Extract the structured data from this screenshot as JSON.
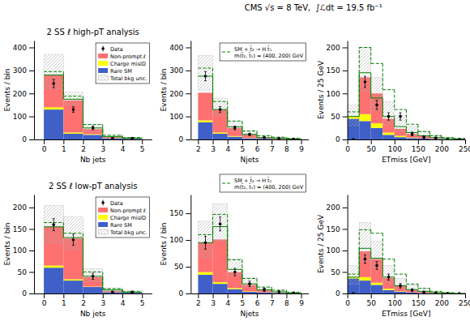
{
  "chart_data": [
    {
      "type": "histogram",
      "title": "2 SS ℓ high-pT analysis",
      "x_label": "Nb jets",
      "y_label": "Events / bin",
      "xlim": [
        -0.5,
        5.5
      ],
      "ylim": [
        0,
        430
      ],
      "xticks": [
        0,
        1,
        2,
        3,
        4,
        5
      ],
      "yticks": [
        0,
        100,
        200,
        300,
        400
      ],
      "bins": [
        0,
        1,
        2,
        3,
        4,
        5
      ],
      "stacked": true,
      "legend": "upper right",
      "series": [
        {
          "name": "Rare SM",
          "type": "bar",
          "color": "#4060c8",
          "values": [
            130,
            25,
            20,
            5,
            3
          ]
        },
        {
          "name": "Charge misID",
          "type": "bar",
          "color": "#ffff00",
          "values": [
            10,
            5,
            3,
            1,
            0
          ]
        },
        {
          "name": "Non-prompt ℓ",
          "type": "bar",
          "color": "#ff7070",
          "values": [
            140,
            140,
            22,
            5,
            0
          ]
        },
        {
          "name": "Total bkg unc.",
          "type": "band",
          "color": "#aaaaaa",
          "low": [
            220,
            150,
            32,
            7,
            2
          ],
          "high": [
            370,
            205,
            65,
            20,
            10
          ]
        },
        {
          "type": "step",
          "color": "green",
          "line_style": "solid",
          "values": [
            280,
            175,
            50,
            12,
            5
          ]
        },
        {
          "type": "step",
          "color": "green",
          "line_style": "dashed",
          "values": [
            295,
            188,
            65,
            18,
            8
          ]
        },
        {
          "name": "Data",
          "type": "scatter",
          "color": "#000000",
          "marker": "circle",
          "x": [
            0.5,
            1.5,
            2.5,
            3.5,
            4.5
          ],
          "values": [
            243,
            130,
            50,
            5,
            5
          ],
          "error_low": [
            18,
            12,
            8,
            3,
            3
          ],
          "error_high": [
            18,
            12,
            8,
            3,
            3
          ]
        }
      ]
    },
    {
      "type": "histogram",
      "x_label": "Njets",
      "y_label": "Events / bin",
      "annotations": [
        "CMS √s = 8 TeV,  ∫ℒdt = 19.5 fb⁻¹"
      ],
      "xlim": [
        1.5,
        9.5
      ],
      "ylim": [
        0,
        430
      ],
      "xticks": [
        2,
        3,
        4,
        5,
        6,
        7,
        8,
        9
      ],
      "yticks": [
        0,
        100,
        200,
        300,
        400
      ],
      "bins": [
        2,
        3,
        4,
        5,
        6,
        7,
        8,
        9
      ],
      "stacked": true,
      "legend": "upper right",
      "series": [
        {
          "type": "bar",
          "color": "#4060c8",
          "values": [
            75,
            25,
            12,
            5,
            3,
            1,
            1
          ]
        },
        {
          "type": "bar",
          "color": "#ffff00",
          "values": [
            8,
            5,
            3,
            1,
            0,
            0,
            0
          ]
        },
        {
          "type": "bar",
          "color": "#ff7070",
          "values": [
            120,
            100,
            35,
            15,
            5,
            2,
            0
          ]
        },
        {
          "type": "band",
          "color": "#aaaaaa",
          "low": [
            215,
            105,
            38,
            14,
            5,
            3,
            1
          ],
          "high": [
            365,
            180,
            78,
            35,
            15,
            10,
            5
          ]
        },
        {
          "type": "step",
          "color": "green",
          "line_style": "solid",
          "values": [
            275,
            130,
            55,
            22,
            8,
            5,
            2
          ]
        },
        {
          "name": "SM + t̃₂ → H t̃₁\nm(t̃₂, t̃₁) = (400, 200) GeV",
          "type": "step",
          "color": "green",
          "line_style": "dashed",
          "values": [
            310,
            165,
            80,
            37,
            16,
            10,
            5
          ]
        },
        {
          "type": "scatter",
          "color": "#000000",
          "marker": "circle",
          "x": [
            2.5,
            3.5,
            4.5,
            5.5,
            6.5,
            7.5,
            8.5
          ],
          "values": [
            275,
            130,
            50,
            22,
            8,
            4,
            2
          ],
          "error_low": [
            20,
            13,
            8,
            5,
            3,
            2,
            1
          ],
          "error_high": [
            20,
            13,
            8,
            5,
            3,
            2,
            1
          ]
        }
      ]
    },
    {
      "type": "histogram",
      "x_label": "ETmiss [GeV]",
      "y_label": "Events / 25 GeV",
      "xlim": [
        0,
        250
      ],
      "ylim": [
        0,
        215
      ],
      "xticks": [
        0,
        50,
        100,
        150,
        200,
        250
      ],
      "yticks": [
        0,
        50,
        100,
        150,
        200
      ],
      "bins": [
        0,
        25,
        50,
        75,
        100,
        125,
        150,
        175,
        200,
        225,
        250
      ],
      "stacked": true,
      "series": [
        {
          "type": "bar",
          "color": "#4060c8",
          "values": [
            45,
            40,
            25,
            10,
            5,
            3,
            2,
            1,
            0,
            0
          ]
        },
        {
          "type": "bar",
          "color": "#ffff00",
          "values": [
            5,
            15,
            10,
            5,
            3,
            1,
            0,
            0,
            0,
            0
          ]
        },
        {
          "type": "bar",
          "color": "#ff7070",
          "values": [
            0,
            80,
            65,
            30,
            15,
            8,
            5,
            2,
            0,
            0
          ]
        },
        {
          "type": "band",
          "color": "#aaaaaa",
          "low": [
            30,
            105,
            62,
            33,
            17,
            9,
            5,
            2,
            1,
            0
          ],
          "high": [
            75,
            200,
            135,
            82,
            52,
            28,
            18,
            10,
            5,
            2
          ]
        },
        {
          "type": "step",
          "color": "green",
          "line_style": "solid",
          "values": [
            50,
            145,
            90,
            50,
            28,
            15,
            8,
            4,
            2,
            1
          ]
        },
        {
          "type": "step",
          "color": "green",
          "line_style": "dashed",
          "values": [
            60,
            200,
            165,
            108,
            65,
            33,
            17,
            8,
            4,
            2
          ]
        },
        {
          "type": "scatter",
          "color": "#000000",
          "marker": "circle",
          "x": [
            12.5,
            37.5,
            62.5,
            87.5,
            112.5,
            137.5,
            162.5,
            187.5,
            212.5,
            237.5
          ],
          "values": [
            0,
            125,
            75,
            50,
            50,
            12,
            5,
            3,
            0,
            0
          ],
          "error_low": [
            0,
            12,
            10,
            8,
            8,
            4,
            3,
            2,
            0,
            0
          ],
          "error_high": [
            0,
            12,
            10,
            8,
            8,
            4,
            3,
            2,
            0,
            0
          ]
        }
      ]
    },
    {
      "type": "histogram",
      "title": "2 SS ℓ low-pT analysis",
      "x_label": "Nb jets",
      "y_label": "Events / bin",
      "xlim": [
        -0.5,
        5.5
      ],
      "ylim": [
        0,
        230
      ],
      "xticks": [
        0,
        1,
        2,
        3,
        4,
        5
      ],
      "yticks": [
        0,
        50,
        100,
        150,
        200
      ],
      "bins": [
        0,
        1,
        2,
        3,
        4,
        5
      ],
      "stacked": true,
      "legend": "upper right",
      "series": [
        {
          "name": "Rare SM",
          "type": "bar",
          "color": "#4060c8",
          "values": [
            60,
            30,
            15,
            3,
            2
          ]
        },
        {
          "name": "Charge misID",
          "type": "bar",
          "color": "#ffff00",
          "values": [
            5,
            3,
            1,
            0,
            0
          ]
        },
        {
          "name": "Non-prompt ℓ",
          "type": "bar",
          "color": "#ff7070",
          "values": [
            90,
            95,
            22,
            3,
            0
          ]
        },
        {
          "name": "Total bkg unc.",
          "type": "band",
          "color": "#aaaaaa",
          "low": [
            118,
            103,
            28,
            5,
            1
          ],
          "high": [
            205,
            178,
            58,
            13,
            7
          ]
        },
        {
          "type": "step",
          "color": "green",
          "line_style": "solid",
          "values": [
            155,
            130,
            40,
            8,
            3
          ]
        },
        {
          "type": "step",
          "color": "green",
          "line_style": "dashed",
          "values": [
            165,
            140,
            50,
            11,
            4
          ]
        },
        {
          "name": "Data",
          "type": "scatter",
          "color": "#000000",
          "marker": "circle",
          "x": [
            0.5,
            1.5,
            2.5,
            3.5,
            4.5
          ],
          "values": [
            160,
            125,
            40,
            3,
            3
          ],
          "error_low": [
            14,
            13,
            7,
            2,
            2
          ],
          "error_high": [
            14,
            13,
            7,
            2,
            2
          ]
        }
      ]
    },
    {
      "type": "histogram",
      "x_label": "Njets",
      "y_label": "Events / bin",
      "xlim": [
        1.5,
        9.5
      ],
      "ylim": [
        0,
        185
      ],
      "xticks": [
        2,
        3,
        4,
        5,
        6,
        7,
        8,
        9
      ],
      "yticks": [
        0,
        50,
        100,
        150
      ],
      "bins": [
        2,
        3,
        4,
        5,
        6,
        7,
        8,
        9
      ],
      "stacked": true,
      "legend": "upper right",
      "series": [
        {
          "type": "bar",
          "color": "#4060c8",
          "values": [
            35,
            18,
            8,
            3,
            2,
            1,
            0
          ]
        },
        {
          "type": "bar",
          "color": "#ffff00",
          "values": [
            5,
            3,
            2,
            1,
            0,
            0,
            0
          ]
        },
        {
          "type": "bar",
          "color": "#ff7070",
          "values": [
            55,
            80,
            30,
            12,
            4,
            1,
            0
          ]
        },
        {
          "type": "band",
          "color": "#aaaaaa",
          "low": [
            68,
            98,
            33,
            12,
            4,
            2,
            0
          ],
          "high": [
            135,
            168,
            65,
            30,
            12,
            7,
            3
          ]
        },
        {
          "type": "step",
          "color": "green",
          "line_style": "solid",
          "values": [
            95,
            125,
            45,
            18,
            7,
            3,
            1
          ]
        },
        {
          "name": "SM + t̃₂ → H t̃₁\nm(t̃₂, t̃₁) = (400, 200) GeV",
          "type": "step",
          "color": "green",
          "line_style": "dashed",
          "values": [
            110,
            148,
            63,
            28,
            12,
            6,
            2
          ]
        },
        {
          "type": "scatter",
          "color": "#000000",
          "marker": "circle",
          "x": [
            2.5,
            3.5,
            4.5,
            5.5,
            6.5,
            7.5,
            8.5
          ],
          "values": [
            95,
            130,
            40,
            18,
            7,
            3,
            1
          ],
          "error_low": [
            12,
            13,
            7,
            5,
            3,
            2,
            1
          ],
          "error_high": [
            12,
            13,
            7,
            5,
            3,
            2,
            1
          ]
        }
      ]
    },
    {
      "type": "histogram",
      "x_label": "ETmiss [GeV]",
      "y_label": "Events / 25 GeV",
      "xlim": [
        0,
        250
      ],
      "ylim": [
        0,
        230
      ],
      "xticks": [
        0,
        50,
        100,
        150,
        200,
        250
      ],
      "yticks": [
        0,
        50,
        100,
        150,
        200
      ],
      "bins": [
        0,
        25,
        50,
        75,
        100,
        125,
        150,
        175,
        200,
        225,
        250
      ],
      "stacked": true,
      "series": [
        {
          "type": "bar",
          "color": "#4060c8",
          "values": [
            35,
            30,
            20,
            8,
            4,
            2,
            1,
            0,
            0,
            0
          ]
        },
        {
          "type": "bar",
          "color": "#ffff00",
          "values": [
            3,
            8,
            5,
            3,
            1,
            0,
            0,
            0,
            0,
            0
          ]
        },
        {
          "type": "bar",
          "color": "#ff7070",
          "values": [
            0,
            60,
            55,
            25,
            12,
            6,
            3,
            1,
            0,
            0
          ]
        },
        {
          "type": "band",
          "color": "#aaaaaa",
          "low": [
            22,
            75,
            58,
            26,
            12,
            5,
            3,
            1,
            0,
            0
          ],
          "high": [
            65,
            165,
            122,
            65,
            35,
            20,
            12,
            5,
            2,
            0
          ]
        },
        {
          "type": "step",
          "color": "green",
          "line_style": "solid",
          "values": [
            38,
            105,
            82,
            38,
            18,
            9,
            5,
            2,
            1,
            0
          ]
        },
        {
          "type": "step",
          "color": "green",
          "line_style": "dashed",
          "values": [
            45,
            148,
            140,
            80,
            45,
            22,
            12,
            5,
            2,
            0
          ]
        },
        {
          "type": "scatter",
          "color": "#000000",
          "marker": "circle",
          "x": [
            12.5,
            37.5,
            62.5,
            87.5,
            112.5,
            137.5,
            162.5,
            187.5,
            212.5,
            237.5
          ],
          "values": [
            0,
            80,
            65,
            38,
            18,
            8,
            3,
            1,
            0,
            0
          ],
          "error_low": [
            0,
            10,
            9,
            7,
            5,
            3,
            2,
            1,
            0,
            0
          ],
          "error_high": [
            0,
            10,
            9,
            7,
            5,
            3,
            2,
            1,
            0,
            0
          ]
        }
      ]
    }
  ]
}
